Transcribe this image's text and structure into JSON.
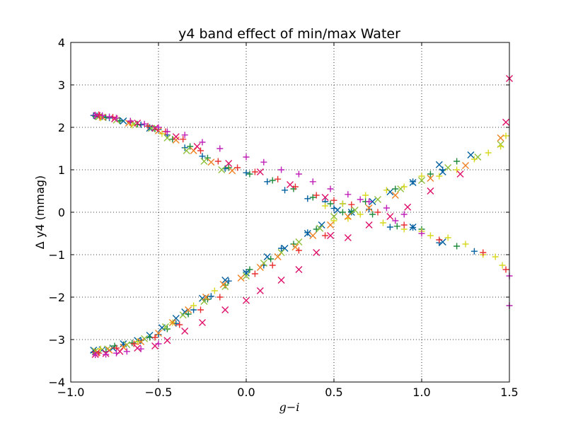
{
  "chart_data": {
    "type": "scatter",
    "title": "y4 band effect of min/max Water",
    "xlabel": "g−i",
    "ylabel": "Δ y4 (mmag)",
    "xlim": [
      -1.0,
      1.5
    ],
    "ylim": [
      -4,
      4
    ],
    "grid": true,
    "xticks": [
      -1.0,
      -0.5,
      0.0,
      0.5,
      1.0,
      1.5
    ],
    "xtick_labels": [
      "−1.0",
      "−0.5",
      "0.0",
      "0.5",
      "1.0",
      "1.5"
    ],
    "yticks": [
      -4,
      -3,
      -2,
      -1,
      0,
      1,
      2,
      3,
      4
    ],
    "ytick_labels": [
      "−4",
      "−3",
      "−2",
      "−1",
      "0",
      "1",
      "2",
      "3",
      "4"
    ],
    "colors": [
      "#005f9f",
      "#1f8a3a",
      "#8fc03a",
      "#d8d820",
      "#f08020",
      "#e83030",
      "#e0106a",
      "#c020b8"
    ],
    "series": [
      {
        "marker": "plus",
        "color_index": 0,
        "points": [
          [
            -0.87,
            2.28
          ],
          [
            -0.85,
            2.27
          ],
          [
            -0.82,
            2.25
          ],
          [
            -0.78,
            2.22
          ],
          [
            -0.72,
            2.16
          ],
          [
            -0.66,
            2.11
          ],
          [
            -0.6,
            2.06
          ],
          [
            -0.55,
            2.0
          ],
          [
            -0.5,
            1.95
          ],
          [
            -0.45,
            1.82
          ],
          [
            -0.35,
            1.52
          ],
          [
            -0.25,
            1.32
          ],
          [
            -0.12,
            1.03
          ],
          [
            0.0,
            0.93
          ],
          [
            0.12,
            0.72
          ],
          [
            0.22,
            0.52
          ],
          [
            0.35,
            0.32
          ],
          [
            0.45,
            0.25
          ],
          [
            0.55,
            0.2
          ],
          [
            0.7,
            0.07
          ],
          [
            0.82,
            -0.35
          ],
          [
            0.95,
            -0.36
          ],
          [
            1.1,
            -0.72
          ],
          [
            1.3,
            -0.92
          ],
          [
            -0.87,
            -3.3
          ],
          [
            -0.8,
            -3.28
          ],
          [
            -0.7,
            -3.12
          ],
          [
            -0.6,
            -3.02
          ],
          [
            -0.5,
            -2.88
          ],
          [
            -0.4,
            -2.62
          ],
          [
            -0.3,
            -2.3
          ],
          [
            -0.2,
            -1.98
          ],
          [
            -0.1,
            -1.62
          ],
          [
            0.0,
            -1.41
          ],
          [
            0.1,
            -1.25
          ],
          [
            0.2,
            -0.85
          ],
          [
            0.35,
            -0.48
          ],
          [
            0.5,
            0.09
          ],
          [
            0.6,
            0.0
          ],
          [
            0.95,
            0.72
          ],
          [
            1.12,
            1.0
          ]
        ]
      },
      {
        "marker": "x",
        "color_index": 0,
        "points": [
          [
            -0.87,
            -3.25
          ],
          [
            -0.82,
            -3.24
          ],
          [
            -0.76,
            -3.2
          ],
          [
            -0.7,
            -3.1
          ],
          [
            -0.62,
            -3.02
          ],
          [
            -0.55,
            -2.9
          ],
          [
            -0.48,
            -2.72
          ],
          [
            -0.4,
            -2.5
          ],
          [
            -0.35,
            -2.35
          ],
          [
            -0.25,
            -2.03
          ],
          [
            -0.12,
            -1.6
          ],
          [
            0.0,
            -1.43
          ],
          [
            0.12,
            -1.05
          ],
          [
            0.22,
            -0.85
          ],
          [
            0.35,
            -0.5
          ],
          [
            0.43,
            -0.3
          ],
          [
            0.52,
            0.05
          ],
          [
            0.6,
            0.0
          ],
          [
            0.72,
            0.25
          ],
          [
            0.82,
            0.48
          ],
          [
            0.95,
            0.7
          ],
          [
            1.1,
            1.12
          ],
          [
            1.12,
            0.95
          ],
          [
            1.28,
            1.35
          ],
          [
            -0.85,
            2.27
          ],
          [
            -0.7,
            2.15
          ],
          [
            -0.55,
            1.98
          ],
          [
            0.95,
            -0.35
          ],
          [
            1.12,
            -0.7
          ]
        ]
      },
      {
        "marker": "plus",
        "color_index": 1,
        "points": [
          [
            -0.86,
            2.26
          ],
          [
            -0.8,
            2.23
          ],
          [
            -0.72,
            2.15
          ],
          [
            -0.62,
            2.07
          ],
          [
            -0.52,
            1.96
          ],
          [
            -0.42,
            1.72
          ],
          [
            -0.32,
            1.55
          ],
          [
            -0.22,
            1.28
          ],
          [
            -0.1,
            1.05
          ],
          [
            0.02,
            0.9
          ],
          [
            0.15,
            0.75
          ],
          [
            0.27,
            0.55
          ],
          [
            0.38,
            0.35
          ],
          [
            0.48,
            0.2
          ],
          [
            0.6,
            0.02
          ],
          [
            0.72,
            -0.05
          ],
          [
            0.86,
            -0.33
          ],
          [
            1.0,
            -0.4
          ],
          [
            1.2,
            -0.8
          ],
          [
            -0.86,
            -3.28
          ],
          [
            -0.75,
            -3.15
          ],
          [
            -0.65,
            -3.08
          ],
          [
            -0.55,
            -2.95
          ],
          [
            -0.45,
            -2.75
          ],
          [
            -0.33,
            -2.4
          ],
          [
            -0.22,
            -2.05
          ],
          [
            -0.12,
            -1.72
          ],
          [
            0.02,
            -1.35
          ],
          [
            0.14,
            -1.1
          ],
          [
            0.27,
            -0.75
          ],
          [
            0.4,
            -0.4
          ],
          [
            0.55,
            0.0
          ],
          [
            0.68,
            0.25
          ],
          [
            0.85,
            0.55
          ],
          [
            1.05,
            0.9
          ],
          [
            1.2,
            1.2
          ]
        ]
      },
      {
        "marker": "x",
        "color_index": 2,
        "points": [
          [
            -0.86,
            -3.27
          ],
          [
            -0.79,
            -3.22
          ],
          [
            -0.68,
            -3.12
          ],
          [
            -0.58,
            -2.98
          ],
          [
            -0.46,
            -2.7
          ],
          [
            -0.36,
            -2.42
          ],
          [
            -0.24,
            -2.1
          ],
          [
            -0.12,
            -1.75
          ],
          [
            0.0,
            -1.5
          ],
          [
            0.1,
            -1.2
          ],
          [
            0.2,
            -0.95
          ],
          [
            0.3,
            -0.7
          ],
          [
            0.42,
            -0.38
          ],
          [
            0.5,
            -0.1
          ],
          [
            0.62,
            0.05
          ],
          [
            0.75,
            0.3
          ],
          [
            0.88,
            0.55
          ],
          [
            1.0,
            0.75
          ],
          [
            1.15,
            1.05
          ],
          [
            1.32,
            1.3
          ],
          [
            1.45,
            1.6
          ],
          [
            -0.84,
            2.25
          ],
          [
            -0.74,
            2.17
          ],
          [
            -0.64,
            2.08
          ],
          [
            -0.54,
            1.98
          ],
          [
            -0.45,
            1.75
          ],
          [
            -0.34,
            1.45
          ],
          [
            -0.24,
            1.2
          ],
          [
            -0.14,
            1.0
          ]
        ]
      },
      {
        "marker": "plus",
        "color_index": 3,
        "points": [
          [
            0.5,
            -0.2
          ],
          [
            0.58,
            -0.15
          ],
          [
            0.65,
            -0.05
          ],
          [
            0.78,
            -0.25
          ],
          [
            0.9,
            -0.4
          ],
          [
            1.0,
            -0.45
          ],
          [
            1.05,
            -0.55
          ],
          [
            1.15,
            -0.6
          ],
          [
            1.25,
            -0.75
          ],
          [
            1.35,
            -1.0
          ],
          [
            1.42,
            -1.05
          ],
          [
            1.46,
            -1.25
          ],
          [
            0.45,
            0.15
          ],
          [
            0.55,
            0.2
          ],
          [
            0.68,
            0.4
          ],
          [
            0.8,
            0.52
          ],
          [
            0.9,
            0.6
          ],
          [
            1.0,
            0.85
          ],
          [
            1.1,
            0.85
          ],
          [
            1.2,
            1.0
          ],
          [
            1.3,
            1.25
          ],
          [
            1.38,
            1.4
          ],
          [
            1.45,
            1.55
          ],
          [
            1.48,
            1.8
          ],
          [
            -0.83,
            2.22
          ],
          [
            -0.65,
            2.05
          ],
          [
            -0.48,
            1.85
          ],
          [
            -0.83,
            -3.22
          ],
          [
            -0.62,
            -3.05
          ],
          [
            -0.42,
            -2.6
          ],
          [
            -0.3,
            -2.2
          ],
          [
            -0.18,
            -1.85
          ]
        ]
      },
      {
        "marker": "x",
        "color_index": 4,
        "points": [
          [
            -0.85,
            -3.3
          ],
          [
            -0.78,
            -3.25
          ],
          [
            -0.7,
            -3.18
          ],
          [
            -0.6,
            -3.05
          ],
          [
            -0.5,
            -2.85
          ],
          [
            -0.42,
            -2.6
          ],
          [
            -0.33,
            -2.3
          ],
          [
            -0.23,
            -2.0
          ],
          [
            -0.13,
            -1.7
          ],
          [
            -0.03,
            -1.55
          ],
          [
            0.08,
            -1.3
          ],
          [
            0.18,
            -1.05
          ],
          [
            0.28,
            -0.82
          ],
          [
            0.38,
            -0.55
          ],
          [
            0.48,
            -0.3
          ],
          [
            0.58,
            -0.1
          ],
          [
            0.7,
            0.1
          ],
          [
            0.85,
            0.4
          ],
          [
            1.05,
            0.8
          ],
          [
            1.25,
            1.1
          ],
          [
            1.45,
            1.75
          ],
          [
            -0.82,
            2.24
          ],
          [
            -0.67,
            2.1
          ],
          [
            -0.5,
            1.92
          ],
          [
            -0.4,
            1.7
          ],
          [
            -0.3,
            1.45
          ],
          [
            -0.2,
            1.18
          ],
          [
            -0.08,
            0.98
          ]
        ]
      },
      {
        "marker": "plus",
        "color_index": 5,
        "points": [
          [
            -0.84,
            2.3
          ],
          [
            -0.76,
            2.24
          ],
          [
            -0.66,
            2.13
          ],
          [
            -0.56,
            2.03
          ],
          [
            -0.46,
            1.9
          ],
          [
            -0.36,
            1.72
          ],
          [
            -0.26,
            1.45
          ],
          [
            -0.16,
            1.2
          ],
          [
            -0.05,
            1.05
          ],
          [
            0.05,
            0.95
          ],
          [
            0.18,
            0.78
          ],
          [
            0.28,
            0.6
          ],
          [
            0.4,
            0.4
          ],
          [
            0.5,
            0.28
          ],
          [
            0.6,
            0.18
          ],
          [
            0.75,
            0.0
          ],
          [
            0.9,
            -0.3
          ],
          [
            1.1,
            -0.65
          ],
          [
            1.35,
            -0.95
          ],
          [
            1.48,
            -1.35
          ],
          [
            -0.84,
            -3.32
          ],
          [
            -0.74,
            -3.2
          ],
          [
            -0.64,
            -3.1
          ],
          [
            -0.52,
            -2.95
          ],
          [
            -0.38,
            -2.65
          ],
          [
            -0.26,
            -2.3
          ],
          [
            -0.15,
            -2.0
          ],
          [
            0.05,
            -1.45
          ],
          [
            0.15,
            -1.25
          ],
          [
            0.3,
            -0.9
          ],
          [
            0.45,
            -0.55
          ]
        ]
      },
      {
        "marker": "x",
        "color_index": 6,
        "points": [
          [
            -0.86,
            -3.35
          ],
          [
            -0.8,
            -3.33
          ],
          [
            -0.72,
            -3.28
          ],
          [
            -0.62,
            -3.2
          ],
          [
            -0.52,
            -3.15
          ],
          [
            -0.45,
            -3.02
          ],
          [
            -0.35,
            -2.8
          ],
          [
            -0.25,
            -2.6
          ],
          [
            -0.12,
            -2.3
          ],
          [
            0.0,
            -2.08
          ],
          [
            0.08,
            -1.85
          ],
          [
            0.2,
            -1.6
          ],
          [
            0.3,
            -1.35
          ],
          [
            0.4,
            -0.95
          ],
          [
            0.48,
            -0.55
          ],
          [
            0.58,
            -0.6
          ],
          [
            0.7,
            -0.3
          ],
          [
            0.82,
            -0.1
          ],
          [
            0.92,
            0.12
          ],
          [
            1.05,
            0.5
          ],
          [
            1.22,
            0.9
          ],
          [
            1.48,
            2.12
          ],
          [
            1.5,
            3.15
          ],
          [
            -0.85,
            2.28
          ],
          [
            -0.75,
            2.2
          ],
          [
            -0.62,
            2.1
          ],
          [
            -0.52,
            1.98
          ],
          [
            -0.4,
            1.78
          ],
          [
            -0.28,
            1.55
          ],
          [
            -0.1,
            1.15
          ],
          [
            0.08,
            0.95
          ],
          [
            0.25,
            0.65
          ],
          [
            0.45,
            0.35
          ]
        ]
      },
      {
        "marker": "plus",
        "color_index": 7,
        "points": [
          [
            -0.86,
            2.29
          ],
          [
            -0.82,
            2.28
          ],
          [
            -0.78,
            2.25
          ],
          [
            -0.74,
            2.22
          ],
          [
            -0.66,
            2.15
          ],
          [
            -0.58,
            2.08
          ],
          [
            -0.5,
            2.0
          ],
          [
            -0.45,
            1.9
          ],
          [
            -0.35,
            1.82
          ],
          [
            -0.25,
            1.65
          ],
          [
            -0.15,
            1.5
          ],
          [
            0.0,
            1.3
          ],
          [
            0.1,
            1.18
          ],
          [
            0.2,
            1.0
          ],
          [
            0.3,
            0.9
          ],
          [
            0.38,
            0.72
          ],
          [
            0.48,
            0.55
          ],
          [
            0.58,
            0.42
          ],
          [
            0.65,
            0.3
          ],
          [
            0.7,
            0.25
          ],
          [
            0.8,
            0.1
          ],
          [
            0.9,
            -0.05
          ],
          [
            1.0,
            -0.5
          ],
          [
            1.5,
            -1.5
          ],
          [
            -0.86,
            -3.36
          ],
          [
            -0.8,
            -3.35
          ],
          [
            -0.74,
            -3.32
          ],
          [
            -0.68,
            -3.28
          ],
          [
            -0.6,
            -3.22
          ],
          [
            -0.5,
            -3.1
          ],
          [
            0.85,
            -0.2
          ],
          [
            1.5,
            -2.2
          ]
        ]
      }
    ]
  }
}
